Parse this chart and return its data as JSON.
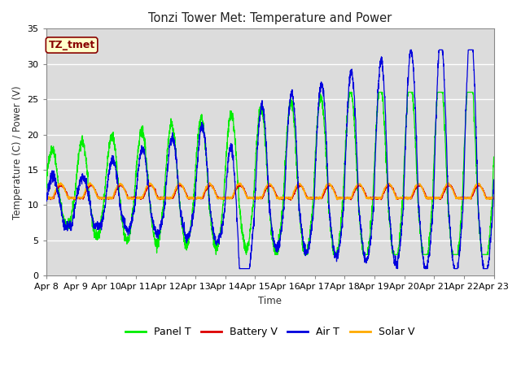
{
  "title": "Tonzi Tower Met: Temperature and Power",
  "xlabel": "Time",
  "ylabel": "Temperature (C) / Power (V)",
  "ylim": [
    0,
    35
  ],
  "xlim_days": 15,
  "tick_labels": [
    "Apr 8",
    "Apr 9",
    "Apr 10",
    "Apr 11",
    "Apr 12",
    "Apr 13",
    "Apr 14",
    "Apr 15",
    "Apr 16",
    "Apr 17",
    "Apr 18",
    "Apr 19",
    "Apr 20",
    "Apr 21",
    "Apr 22",
    "Apr 23"
  ],
  "annotation": "TZ_tmet",
  "annotation_facecolor": "#ffffcc",
  "annotation_edgecolor": "#880000",
  "facecolor": "#dcdcdc",
  "line_colors": {
    "panel": "#00ee00",
    "battery": "#dd0000",
    "air": "#0000dd",
    "solar": "#ffaa00"
  },
  "legend_labels": [
    "Panel T",
    "Battery V",
    "Air T",
    "Solar V"
  ]
}
